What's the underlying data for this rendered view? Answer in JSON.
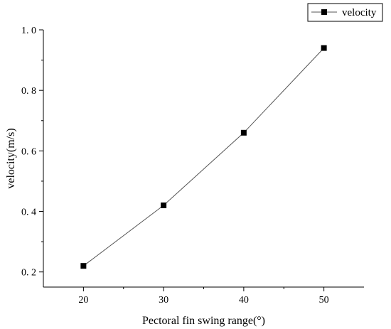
{
  "chart_data": {
    "type": "line",
    "title": "",
    "xlabel": "Pectoral fin swing range(°)",
    "ylabel": "velocity(m/s)",
    "xlim": [
      15,
      55
    ],
    "ylim": [
      0.15,
      1.0
    ],
    "x_ticks": [
      20,
      30,
      40,
      50
    ],
    "x_tick_labels": [
      "20",
      "30",
      "40",
      "50"
    ],
    "y_ticks": [
      0.2,
      0.4,
      0.6,
      0.8,
      1.0
    ],
    "y_tick_labels": [
      "0. 2",
      "0. 4",
      "0. 6",
      "0. 8",
      "1. 0"
    ],
    "grid": false,
    "legend_position": "top-right",
    "series": [
      {
        "name": "velocity",
        "marker": "square",
        "color": "#000000",
        "line_color": "#555555",
        "x": [
          20,
          30,
          40,
          50
        ],
        "y": [
          0.22,
          0.42,
          0.66,
          0.94
        ]
      }
    ]
  }
}
